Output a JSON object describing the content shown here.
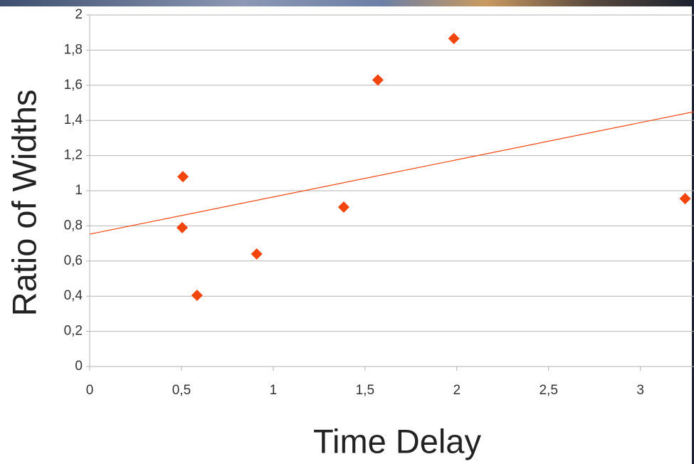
{
  "chart_data": {
    "type": "scatter",
    "x_label": "Time Delay",
    "y_label": "Ratio of Widths",
    "series": [
      {
        "color": "#f2450e",
        "x": [
          0.508,
          0.504,
          0.585,
          0.91,
          1.384,
          1.57,
          1.984,
          3.244
        ],
        "values": [
          1.08,
          0.79,
          0.405,
          0.64,
          0.907,
          1.63,
          1.866,
          0.955
        ]
      }
    ],
    "trendline": {
      "color": "#f2450e",
      "x": [
        0,
        3.3
      ],
      "values": [
        0.753,
        1.451
      ]
    },
    "xlim": [
      0,
      3.3
    ],
    "ylim": [
      0,
      2
    ],
    "xticks": [
      0,
      {
        "value": 0.5,
        "label": "0,5"
      },
      1,
      {
        "value": 1.5,
        "label": "1,5"
      },
      2,
      {
        "value": 2.5,
        "label": "2,5"
      },
      3
    ],
    "yticks": [
      0,
      {
        "value": 0.2,
        "label": "0,2"
      },
      {
        "value": 0.4,
        "label": "0,4"
      },
      {
        "value": 0.6,
        "label": "0,6"
      },
      {
        "value": 0.8,
        "label": "0,8"
      },
      1,
      {
        "value": 1.2,
        "label": "1,2"
      },
      {
        "value": 1.4,
        "label": "1,4"
      },
      {
        "value": 1.6,
        "label": "1,6"
      },
      {
        "value": 1.8,
        "label": "1,8"
      },
      2
    ],
    "grid": true
  }
}
